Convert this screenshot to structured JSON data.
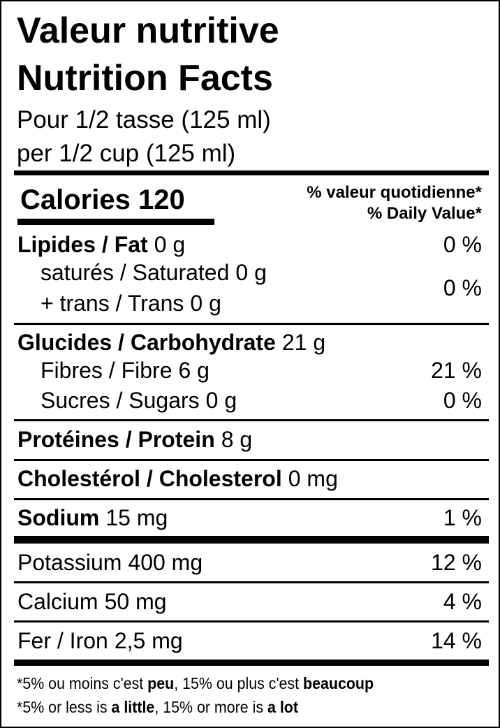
{
  "header": {
    "title_fr": "Valeur nutritive",
    "title_en": "Nutrition Facts",
    "serving_fr": "Pour 1/2 tasse (125 ml)",
    "serving_en": "per 1/2 cup (125 ml)"
  },
  "calories": "Calories 120",
  "daily_value_header": [
    "% valeur quotidienne*",
    "% Daily Value*"
  ],
  "nutrients": [
    {
      "name": "Lipides / Fat",
      "amount": "0 g",
      "dv": "0 %"
    },
    {
      "name": "saturés / Saturated",
      "amount": "0 g"
    },
    {
      "name": "+ trans / Trans",
      "amount": "0 g",
      "dv": "0 %"
    },
    {
      "name": "Glucides / Carbohydrate",
      "amount": "21 g"
    },
    {
      "name": "Fibres / Fibre",
      "amount": "6 g",
      "dv": "21 %"
    },
    {
      "name": "Sucres / Sugars",
      "amount": "0 g",
      "dv": "0 %"
    },
    {
      "name": "Protéines / Protein",
      "amount": "8 g"
    },
    {
      "name": "Cholestérol / Cholesterol",
      "amount": "0 mg"
    },
    {
      "name": "Sodium",
      "amount": "15 mg",
      "dv": "1 %"
    },
    {
      "name": "Potassium",
      "amount": "400 mg",
      "dv": "12 %"
    },
    {
      "name": "Calcium",
      "amount": "50 mg",
      "dv": "4 %"
    },
    {
      "name": "Fer / Iron",
      "amount": "2,5 mg",
      "dv": "14 %"
    }
  ],
  "footnote": [
    [
      "*5% ou moins c'est ",
      "peu",
      ", 15% ou plus c'est ",
      "beaucoup"
    ],
    [
      "*5% or less is ",
      "a little",
      ", 15% or more is ",
      "a lot"
    ]
  ]
}
